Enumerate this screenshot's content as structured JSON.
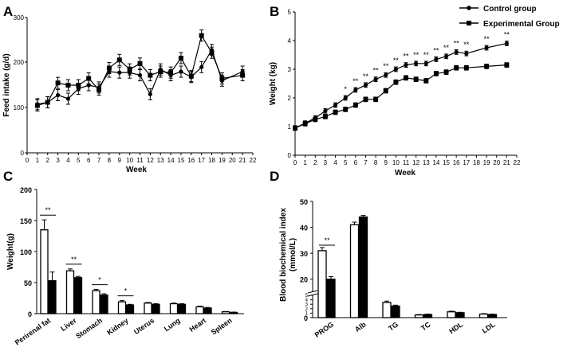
{
  "chart_data": [
    {
      "panel": "A",
      "type": "line",
      "xlabel": "Week",
      "ylabel": "Feed intake (g/d)",
      "xlim": [
        0,
        22
      ],
      "ylim": [
        0,
        300
      ],
      "xticks": [
        "0",
        "1",
        "2",
        "3",
        "4",
        "5",
        "6",
        "7",
        "8",
        "9",
        "10",
        "11",
        "12",
        "13",
        "14",
        "15",
        "16",
        "17",
        "18",
        "19",
        "20",
        "21",
        "22"
      ],
      "yticks": [
        "0",
        "100",
        "200",
        "300"
      ],
      "series": [
        {
          "name": "Control group",
          "marker": "circle",
          "x": [
            1,
            2,
            3,
            4,
            5,
            6,
            7,
            8,
            9,
            10,
            11,
            12,
            13,
            14,
            15,
            16,
            17,
            18,
            19,
            21
          ],
          "values": [
            108,
            112,
            128,
            120,
            142,
            150,
            145,
            180,
            178,
            178,
            172,
            130,
            185,
            172,
            180,
            168,
            190,
            228,
            160,
            180
          ]
        },
        {
          "name": "Experimental Group",
          "marker": "square",
          "x": [
            1,
            2,
            3,
            4,
            5,
            6,
            7,
            8,
            9,
            10,
            11,
            12,
            13,
            14,
            15,
            16,
            17,
            18,
            19,
            21
          ],
          "values": [
            105,
            112,
            155,
            150,
            150,
            165,
            140,
            188,
            206,
            185,
            198,
            172,
            180,
            178,
            210,
            170,
            260,
            222,
            165,
            172
          ]
        }
      ]
    },
    {
      "panel": "B",
      "type": "line",
      "xlabel": "Week",
      "ylabel": "Weight (kg)",
      "xlim": [
        0,
        22
      ],
      "ylim": [
        0,
        5
      ],
      "xticks": [
        "0",
        "1",
        "2",
        "3",
        "4",
        "5",
        "6",
        "7",
        "8",
        "9",
        "10",
        "11",
        "12",
        "13",
        "14",
        "15",
        "16",
        "17",
        "18",
        "19",
        "20",
        "21",
        "22"
      ],
      "yticks": [
        "0",
        "1",
        "2",
        "3",
        "4",
        "5"
      ],
      "legend": [
        "Control group",
        "Experimental Group"
      ],
      "series": [
        {
          "name": "Control group",
          "marker": "circle",
          "x": [
            0,
            1,
            2,
            3,
            4,
            5,
            6,
            7,
            8,
            9,
            10,
            11,
            12,
            13,
            14,
            15,
            16,
            17,
            19,
            21
          ],
          "values": [
            0.95,
            1.12,
            1.3,
            1.55,
            1.75,
            2.0,
            2.28,
            2.45,
            2.65,
            2.8,
            3.0,
            3.15,
            3.2,
            3.2,
            3.35,
            3.45,
            3.6,
            3.55,
            3.75,
            3.9
          ]
        },
        {
          "name": "Experimental Group",
          "marker": "square",
          "x": [
            0,
            1,
            2,
            3,
            4,
            5,
            6,
            7,
            8,
            9,
            10,
            11,
            12,
            13,
            14,
            15,
            16,
            17,
            19,
            21
          ],
          "values": [
            0.95,
            1.1,
            1.25,
            1.35,
            1.5,
            1.6,
            1.75,
            1.95,
            1.95,
            2.25,
            2.55,
            2.7,
            2.65,
            2.6,
            2.85,
            2.9,
            3.05,
            3.05,
            3.1,
            3.15
          ]
        }
      ],
      "annotations": [
        {
          "x": 5,
          "text": "*"
        },
        {
          "x": 6,
          "text": "**"
        },
        {
          "x": 7,
          "text": "**"
        },
        {
          "x": 8,
          "text": "**"
        },
        {
          "x": 9,
          "text": "**"
        },
        {
          "x": 10,
          "text": "**"
        },
        {
          "x": 11,
          "text": "**"
        },
        {
          "x": 12,
          "text": "**"
        },
        {
          "x": 13,
          "text": "**"
        },
        {
          "x": 14,
          "text": "**"
        },
        {
          "x": 15,
          "text": "**"
        },
        {
          "x": 16,
          "text": "**"
        },
        {
          "x": 17,
          "text": "**"
        },
        {
          "x": 19,
          "text": "**"
        },
        {
          "x": 21,
          "text": "**"
        }
      ]
    },
    {
      "panel": "C",
      "type": "bar",
      "ylabel": "Weight(g)",
      "ylim": [
        0,
        200
      ],
      "yticks": [
        "0",
        "50",
        "100",
        "150",
        "200"
      ],
      "categories": [
        "Perirenal fat",
        "Liver",
        "Stomach",
        "Kidney",
        "Uterus",
        "Lung",
        "Heart",
        "Spleen"
      ],
      "series": [
        {
          "name": "Control group",
          "fill": "open",
          "values": [
            135,
            69,
            37,
            19,
            17,
            16,
            11,
            3
          ],
          "errors": [
            16,
            3,
            2,
            2,
            1,
            1,
            1,
            0.5
          ]
        },
        {
          "name": "Experimental Group",
          "fill": "solid",
          "values": [
            53,
            58,
            30,
            14,
            15,
            15,
            9,
            2
          ],
          "errors": [
            14,
            2,
            2,
            1,
            1,
            1,
            1,
            0.5
          ]
        }
      ],
      "annotations": [
        {
          "category": "Perirenal fat",
          "text": "**"
        },
        {
          "category": "Liver",
          "text": "**"
        },
        {
          "category": "Stomach",
          "text": "*"
        },
        {
          "category": "Kidney",
          "text": "*"
        }
      ]
    },
    {
      "panel": "D",
      "type": "bar",
      "ylabel": "Blood biochemical index (mmol/L)",
      "yaxis_break": [
        5,
        15
      ],
      "ylim": [
        0,
        50
      ],
      "yticks": [
        "0",
        "1",
        "2",
        "3",
        "4",
        "5",
        "20",
        "30",
        "40",
        "50"
      ],
      "categories": [
        "PROG",
        "Alb",
        "TG",
        "TC",
        "HDL",
        "LDL"
      ],
      "series": [
        {
          "name": "Control group",
          "fill": "open",
          "values": [
            31,
            41,
            3.4,
            0.6,
            1.3,
            0.8
          ],
          "errors": [
            1.2,
            1.0,
            0.3,
            0.1,
            0.15,
            0.1
          ]
        },
        {
          "name": "Experimental Group",
          "fill": "solid",
          "values": [
            20,
            44,
            2.6,
            0.7,
            1.1,
            0.7
          ],
          "errors": [
            1.0,
            0.6,
            0.2,
            0.1,
            0.1,
            0.1
          ]
        }
      ],
      "annotations": [
        {
          "category": "PROG",
          "text": "**"
        }
      ]
    }
  ],
  "panels": {
    "a": "A",
    "b": "B",
    "c": "C",
    "d": "D"
  }
}
